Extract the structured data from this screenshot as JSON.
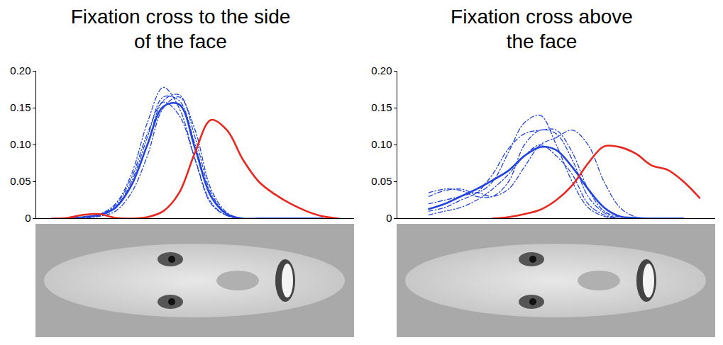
{
  "chart_data": [
    {
      "type": "line",
      "title": "Fixation cross to the side of the face",
      "x": [
        5,
        10,
        15,
        20,
        25,
        30,
        35,
        40,
        45,
        50,
        55,
        60,
        65,
        70,
        75,
        80,
        85,
        90,
        95
      ],
      "xlim": [
        0,
        100
      ],
      "ylim": [
        0,
        0.2
      ],
      "yticks": [
        0,
        0.05,
        {
          "value": 0.1,
          "label": "0.10"
        },
        0.15,
        {
          "value": 0.2,
          "label": "0.20"
        }
      ],
      "tick_labels": "y",
      "series": [
        {
          "color": "#2244dd",
          "line_style": "dashdot",
          "values": [
            null,
            0,
            0.002,
            0.006,
            0.02,
            0.06,
            0.13,
            0.178,
            0.15,
            0.08,
            0.02,
            0.004,
            0,
            0,
            0,
            0,
            0,
            0,
            null
          ]
        },
        {
          "color": "#2244dd",
          "line_style": "dashdot",
          "values": [
            null,
            0,
            0.001,
            0.004,
            0.014,
            0.045,
            0.1,
            0.16,
            0.168,
            0.11,
            0.035,
            0.006,
            0,
            0,
            0,
            0,
            0,
            0,
            null
          ]
        },
        {
          "color": "#2244dd",
          "line_style": "dashdot",
          "values": [
            null,
            0,
            0.001,
            0.003,
            0.01,
            0.035,
            0.085,
            0.15,
            0.165,
            0.12,
            0.04,
            0.008,
            0,
            0,
            0,
            0,
            0,
            0,
            null
          ]
        },
        {
          "color": "#2244dd",
          "line_style": "dashdot",
          "values": [
            null,
            0,
            0.002,
            0.005,
            0.018,
            0.055,
            0.115,
            0.158,
            0.14,
            0.08,
            0.022,
            0.004,
            0,
            0,
            0,
            0,
            0,
            0,
            null
          ]
        },
        {
          "color": "#2244dd",
          "line_style": "dashdot",
          "values": [
            null,
            0,
            0.001,
            0.004,
            0.015,
            0.05,
            0.11,
            0.165,
            0.16,
            0.1,
            0.03,
            0.005,
            0,
            0,
            0,
            0,
            0,
            0,
            null
          ]
        },
        {
          "color": "#2244dd",
          "line_style": "solid",
          "values": [
            null,
            0,
            0.002,
            0.005,
            0.015,
            0.045,
            0.1,
            0.152,
            0.155,
            0.095,
            0.03,
            0.006,
            0,
            0,
            0,
            0,
            0,
            0,
            null
          ]
        },
        {
          "color": "#e8281e",
          "line_style": "solid",
          "values": [
            0,
            0.001,
            0.005,
            0.006,
            0.001,
            0,
            0.002,
            0.01,
            0.035,
            0.09,
            0.134,
            0.12,
            0.08,
            0.05,
            0.033,
            0.02,
            0.01,
            0.003,
            0
          ]
        }
      ]
    },
    {
      "type": "line",
      "title": "Fixation cross above the face",
      "x": [
        5,
        10,
        15,
        20,
        25,
        30,
        35,
        40,
        45,
        50,
        55,
        60,
        65,
        70,
        75,
        80,
        85,
        90,
        95
      ],
      "xlim": [
        0,
        100
      ],
      "ylim": [
        0,
        0.2
      ],
      "yticks": [
        0,
        0.05,
        {
          "value": 0.1,
          "label": "0.10"
        },
        0.15,
        {
          "value": 0.2,
          "label": "0.20"
        }
      ],
      "tick_labels": "y",
      "series": [
        {
          "color": "#2244dd",
          "line_style": "dashdot",
          "values": [
            null,
            0.03,
            0.038,
            0.04,
            0.035,
            0.05,
            0.09,
            0.13,
            0.14,
            0.1,
            0.05,
            0.015,
            0.003,
            0,
            0,
            0,
            0,
            0,
            null
          ]
        },
        {
          "color": "#2244dd",
          "line_style": "dashdot",
          "values": [
            null,
            0.01,
            0.015,
            0.025,
            0.035,
            0.06,
            0.095,
            0.115,
            0.12,
            0.12,
            0.09,
            0.04,
            0.01,
            0.002,
            0,
            0,
            0,
            0,
            null
          ]
        },
        {
          "color": "#2244dd",
          "line_style": "dashdot",
          "values": [
            null,
            0.035,
            0.04,
            0.038,
            0.03,
            0.03,
            0.05,
            0.1,
            0.12,
            0.115,
            0.08,
            0.03,
            0.008,
            0,
            0,
            0,
            0,
            0,
            null
          ]
        },
        {
          "color": "#2244dd",
          "line_style": "dashdot",
          "values": [
            null,
            0.005,
            0.01,
            0.015,
            0.025,
            0.04,
            0.06,
            0.085,
            0.1,
            0.085,
            0.06,
            0.02,
            0.005,
            0,
            0,
            0,
            0,
            0,
            null
          ]
        },
        {
          "color": "#2244dd",
          "line_style": "dashdot",
          "values": [
            null,
            0.02,
            0.025,
            0.03,
            0.035,
            0.03,
            0.04,
            0.07,
            0.1,
            0.11,
            0.12,
            0.1,
            0.05,
            0.015,
            0.002,
            0,
            0,
            0,
            null
          ]
        },
        {
          "color": "#2244dd",
          "line_style": "solid",
          "values": [
            null,
            0.013,
            0.02,
            0.03,
            0.04,
            0.052,
            0.065,
            0.085,
            0.097,
            0.093,
            0.07,
            0.04,
            0.015,
            0.003,
            0.001,
            0,
            0,
            0,
            null
          ]
        },
        {
          "color": "#e8281e",
          "line_style": "solid",
          "values": [
            null,
            null,
            null,
            null,
            null,
            0,
            0.002,
            0.006,
            0.012,
            0.025,
            0.045,
            0.075,
            0.098,
            0.097,
            0.088,
            0.072,
            0.066,
            0.05,
            0.028
          ]
        }
      ]
    }
  ]
}
